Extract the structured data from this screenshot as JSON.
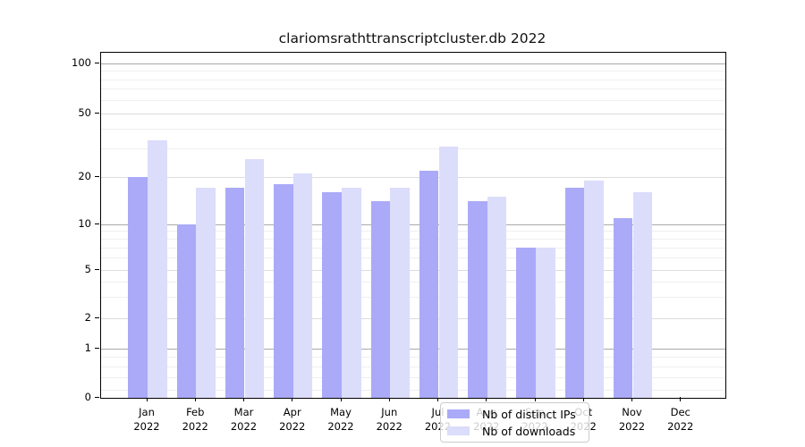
{
  "title": "clariomsrathttranscriptcluster.db 2022",
  "colors": {
    "distinct_ips_bar": "#aaaaf8",
    "downloads_bar": "#dcdcfb",
    "grid_decade": "#a9a9a9",
    "grid_labeled": "#dcdcdc",
    "grid_minor": "#efefef",
    "axis": "#000000"
  },
  "chart_data": {
    "type": "bar",
    "title": "clariomsrathttranscriptcluster.db 2022",
    "categories": [
      "Jan 2022",
      "Feb 2022",
      "Mar 2022",
      "Apr 2022",
      "May 2022",
      "Jun 2022",
      "Jul 2022",
      "Aug 2022",
      "Sep 2022",
      "Oct 2022",
      "Nov 2022",
      "Dec 2022"
    ],
    "month_labels": [
      "Jan",
      "Feb",
      "Mar",
      "Apr",
      "May",
      "Jun",
      "Jul",
      "Aug",
      "Sep",
      "Oct",
      "Nov",
      "Dec"
    ],
    "year_label": "2022",
    "series": [
      {
        "name": "Nb of distinct IPs",
        "color": "#aaaaf8",
        "values": [
          20,
          10,
          17,
          18,
          16,
          14,
          22,
          14,
          7,
          17,
          11,
          0
        ]
      },
      {
        "name": "Nb of downloads",
        "color": "#dcdcfb",
        "values": [
          34,
          17,
          26,
          21,
          17,
          17,
          31,
          15,
          7,
          19,
          16,
          0
        ]
      }
    ],
    "xlabel": "",
    "ylabel": "",
    "yscale": "log-like with zero baseline",
    "ytick_values": [
      100,
      50,
      20,
      10,
      5,
      2,
      1,
      0
    ],
    "ytick_labels": [
      "100",
      "50",
      "20",
      "10",
      "5",
      "2",
      "1",
      "0"
    ],
    "minor_grid_values": [
      90,
      80,
      70,
      60,
      40,
      30,
      9,
      8,
      7,
      6,
      4,
      3,
      0.9,
      0.8,
      0.7,
      0.6
    ],
    "ylim": [
      0,
      100
    ],
    "grid": true,
    "legend_position": "lower center inside plot"
  }
}
